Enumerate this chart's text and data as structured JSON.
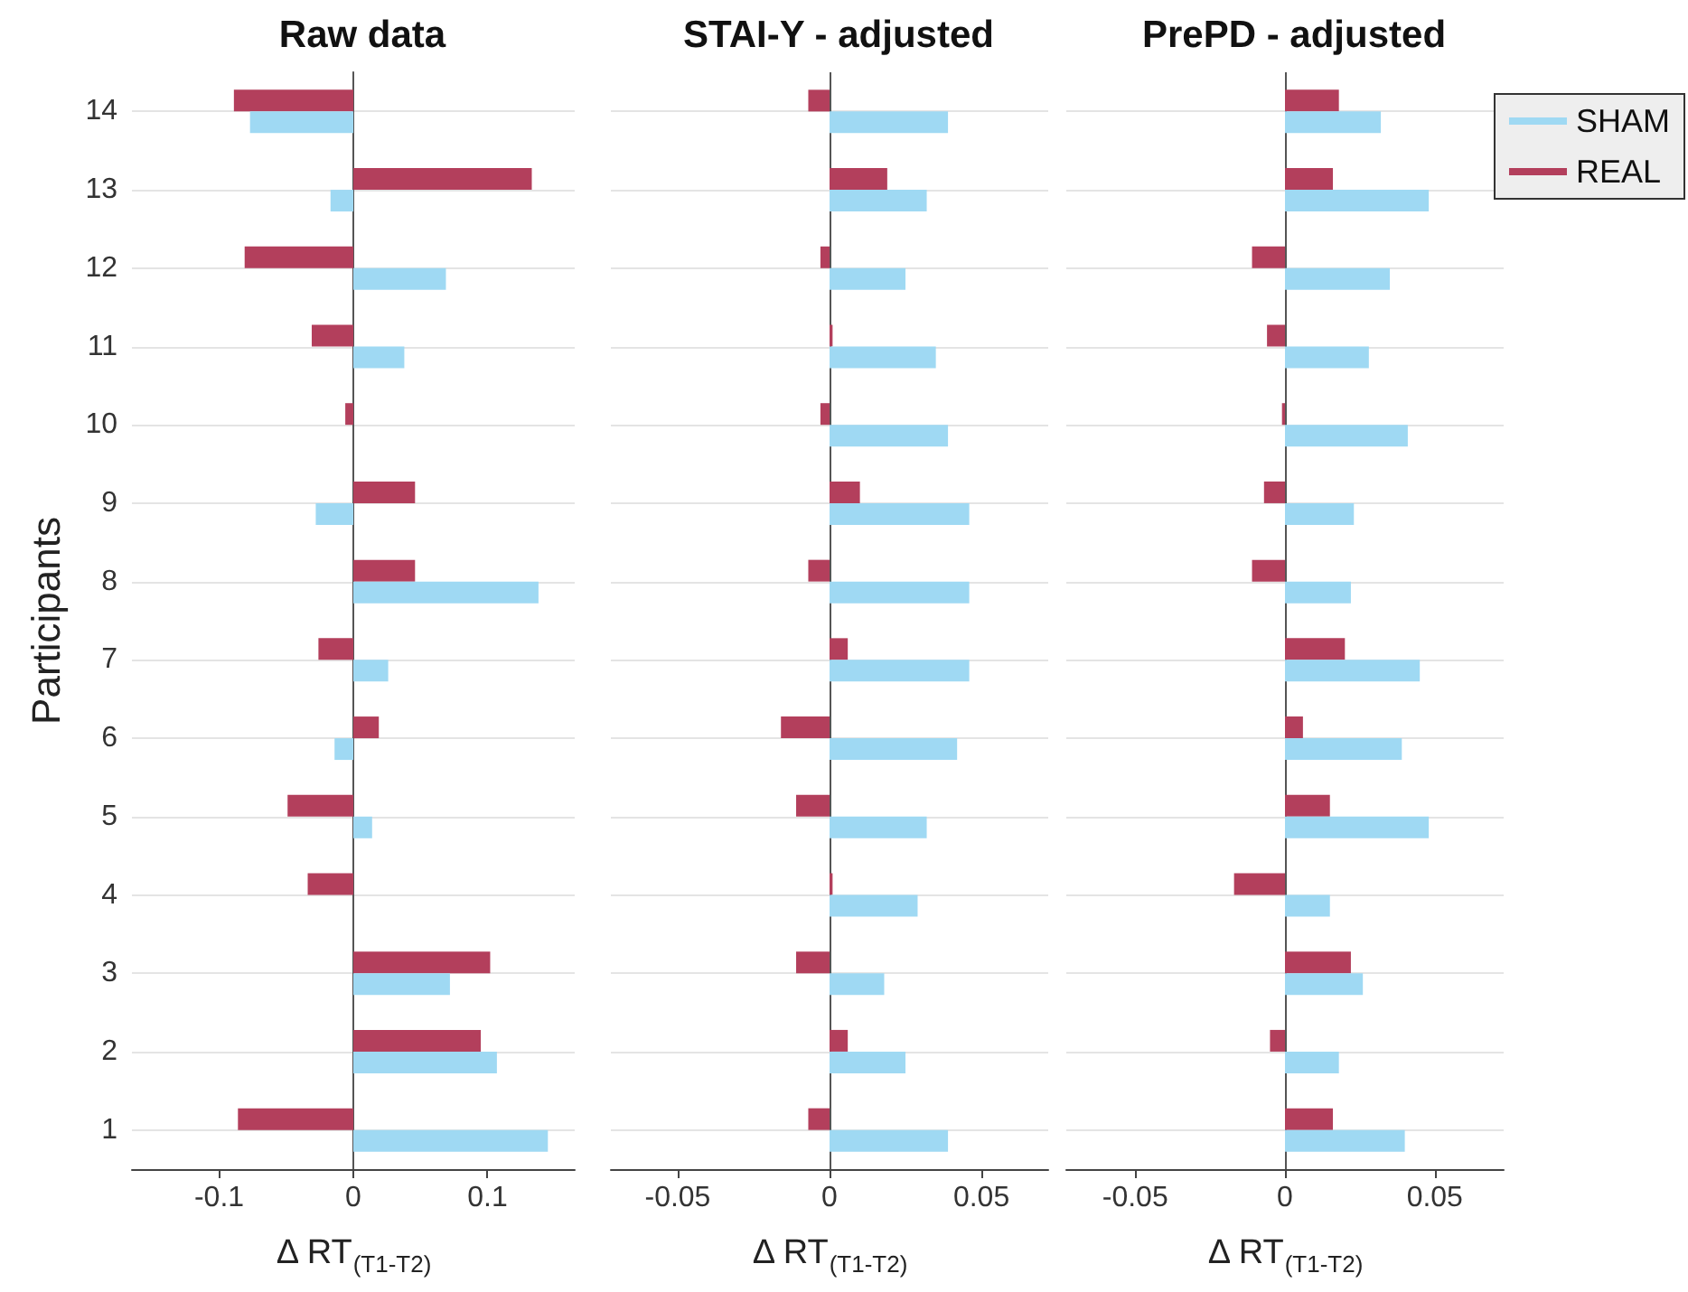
{
  "chart_data": [
    {
      "type": "bar",
      "orientation": "horizontal",
      "title": "Raw data",
      "xlabel": "Δ RT$_{(T1-T2)}$",
      "ylabel": "Participants",
      "categories": [
        "14",
        "13",
        "12",
        "11",
        "10",
        "9",
        "8",
        "7",
        "6",
        "5",
        "4",
        "3",
        "2",
        "1"
      ],
      "series": [
        {
          "color": "#9fd9f3",
          "values": [
            -0.077,
            -0.017,
            0.069,
            0.038,
            0,
            -0.028,
            0.138,
            0.026,
            -0.014,
            0.014,
            0,
            0.072,
            0.107,
            0.145
          ]
        },
        {
          "color": "#b33f5c",
          "values": [
            -0.089,
            0.133,
            -0.081,
            -0.031,
            -0.006,
            0.046,
            0.046,
            -0.026,
            0.019,
            -0.049,
            -0.034,
            0.102,
            0.095,
            -0.086
          ]
        }
      ],
      "xlim": [
        -0.165,
        0.165
      ],
      "xticks": [
        -0.1,
        0,
        0.1
      ],
      "grid": "y",
      "ref_lines": [
        {
          "axis": "x",
          "value": 0,
          "color": "#555555"
        }
      ]
    },
    {
      "type": "bar",
      "orientation": "horizontal",
      "title": "STAI-Y - adjusted",
      "xlabel": "Δ RT$_{(T1-T2)}$",
      "categories": [
        "14",
        "13",
        "12",
        "11",
        "10",
        "9",
        "8",
        "7",
        "6",
        "5",
        "4",
        "3",
        "2",
        "1"
      ],
      "series": [
        {
          "color": "#9fd9f3",
          "values": [
            0.039,
            0.032,
            0.025,
            0.035,
            0.039,
            0.046,
            0.046,
            0.046,
            0.042,
            0.032,
            0.029,
            0.018,
            0.025,
            0.039
          ]
        },
        {
          "color": "#b33f5c",
          "values": [
            -0.007,
            0.019,
            -0.003,
            0.001,
            -0.003,
            0.01,
            -0.007,
            0.006,
            -0.016,
            -0.011,
            0.001,
            -0.011,
            0.006,
            -0.007
          ]
        }
      ],
      "xlim": [
        -0.072,
        0.072
      ],
      "xticks": [
        -0.05,
        0,
        0.05
      ],
      "grid": "y",
      "tick_labels": "x",
      "ref_lines": [
        {
          "axis": "x",
          "value": 0,
          "color": "#555555"
        }
      ]
    },
    {
      "type": "bar",
      "orientation": "horizontal",
      "title": "PrePD - adjusted",
      "xlabel": "Δ RT$_{(T1-T2)}$",
      "categories": [
        "14",
        "13",
        "12",
        "11",
        "10",
        "9",
        "8",
        "7",
        "6",
        "5",
        "4",
        "3",
        "2",
        "1"
      ],
      "series": [
        {
          "name": "SHAM",
          "color": "#9fd9f3",
          "values": [
            0.032,
            0.048,
            0.035,
            0.028,
            0.041,
            0.023,
            0.022,
            0.045,
            0.039,
            0.048,
            0.015,
            0.026,
            0.018,
            0.04
          ]
        },
        {
          "name": "REAL",
          "color": "#b33f5c",
          "values": [
            0.018,
            0.016,
            -0.011,
            -0.006,
            -0.001,
            -0.007,
            -0.011,
            0.02,
            0.006,
            0.015,
            -0.017,
            0.022,
            -0.005,
            0.016
          ]
        }
      ],
      "xlim": [
        -0.073,
        0.073
      ],
      "xticks": [
        -0.05,
        0,
        0.05
      ],
      "grid": "y",
      "tick_labels": "x",
      "legend": "top right",
      "ref_lines": [
        {
          "axis": "x",
          "value": 0,
          "color": "#555555"
        }
      ]
    }
  ]
}
